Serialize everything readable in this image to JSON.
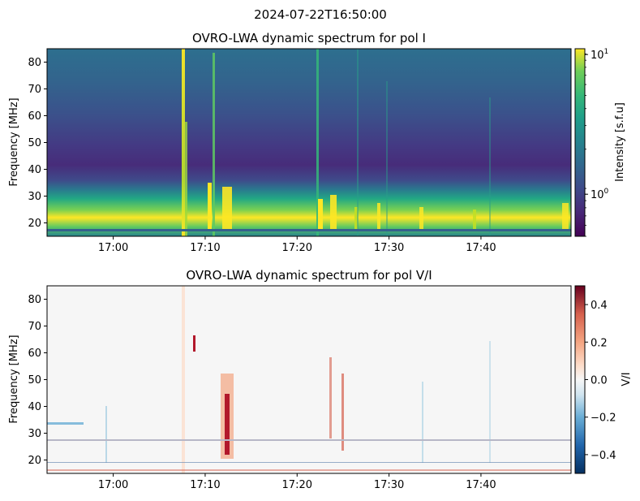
{
  "figure": {
    "suptitle": "2024-07-22T16:50:00"
  },
  "chart_data": [
    {
      "type": "heatmap",
      "title": "OVRO-LWA dynamic spectrum for pol I",
      "xlabel": "",
      "ylabel": "Frequency [MHz]",
      "xlim_minutes": [
        16.88,
        17.83
      ],
      "x_ticks": [
        "17:00",
        "17:10",
        "17:20",
        "17:30",
        "17:40"
      ],
      "ylim": [
        15,
        85
      ],
      "y_ticks": [
        20,
        30,
        40,
        50,
        60,
        70,
        80
      ],
      "colormap": "viridis",
      "color_scale": "log",
      "colorbar": {
        "label": "Intensity [s.f.u]",
        "range": [
          0.5,
          11
        ],
        "major_ticks": [
          {
            "value": 1,
            "label": "10",
            "sup": "0"
          },
          {
            "value": 10,
            "label": "10",
            "sup": "1"
          }
        ]
      },
      "features": [
        {
          "kind": "type-III burst",
          "time": "17:08",
          "freq_range": [
            15,
            85
          ],
          "intensity": "high"
        },
        {
          "kind": "burst",
          "time": "17:10",
          "freq_range": [
            15,
            85
          ],
          "intensity": "high"
        },
        {
          "kind": "burst",
          "time": "17:13",
          "freq_range": [
            15,
            35
          ],
          "intensity": "high"
        },
        {
          "kind": "burst",
          "time": "17:23",
          "freq_range": [
            15,
            85
          ],
          "intensity": "medium"
        },
        {
          "kind": "burst",
          "time": "17:24",
          "freq_range": [
            15,
            30
          ],
          "intensity": "high"
        }
      ]
    },
    {
      "type": "heatmap",
      "title": "OVRO-LWA dynamic spectrum for pol V/I",
      "xlabel": "",
      "ylabel": "Frequency [MHz]",
      "xlim_minutes": [
        16.88,
        17.83
      ],
      "x_ticks": [
        "17:00",
        "17:10",
        "17:20",
        "17:30",
        "17:40"
      ],
      "ylim": [
        15,
        85
      ],
      "y_ticks": [
        20,
        30,
        40,
        50,
        60,
        70,
        80
      ],
      "colormap": "RdBu_r",
      "colorbar": {
        "label": "V/I",
        "range": [
          -0.5,
          0.5
        ],
        "ticks": [
          "0.4",
          "0.2",
          "0.0",
          "−0.2",
          "−0.4"
        ]
      },
      "features": [
        {
          "kind": "positive polarization",
          "time": "17:13",
          "freq_range": [
            25,
            48
          ],
          "value": 0.35
        },
        {
          "kind": "positive polarization",
          "time": "17:09",
          "freq_range": [
            60,
            66
          ],
          "value": 0.4
        }
      ]
    }
  ]
}
